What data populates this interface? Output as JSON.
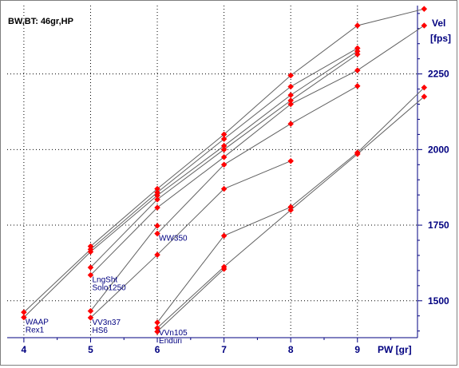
{
  "chart_data": {
    "type": "scatter",
    "title": "BW,BT:  46gr,HP",
    "xlabel": "PW [gr]",
    "ylabel_line1": "Vel",
    "ylabel_line2": "[fps]",
    "xlim": [
      3.75,
      9.9
    ],
    "ylim": [
      1378,
      2476
    ],
    "x_ticks": [
      4,
      5,
      6,
      7,
      8,
      9
    ],
    "y_ticks": [
      1500,
      1750,
      2000,
      2250
    ],
    "grid": true,
    "marker_color": "#ff0000",
    "line_color": "#606060",
    "axis_color": "#000080",
    "series": [
      {
        "values": [
          [
            5,
            1680
          ],
          [
            6,
            1870
          ],
          [
            7,
            2050
          ],
          [
            8,
            2245
          ],
          [
            9,
            2410
          ],
          [
            10,
            2465
          ]
        ]
      },
      {
        "values": [
          [
            4,
            1462
          ],
          [
            5,
            1670
          ],
          [
            6,
            1858
          ],
          [
            7,
            2035
          ],
          [
            8,
            2208
          ],
          [
            9,
            2335
          ]
        ]
      },
      {
        "values": [
          [
            4,
            1445
          ],
          [
            5,
            1662
          ],
          [
            6,
            1848
          ],
          [
            7,
            2012
          ],
          [
            8,
            2180
          ],
          [
            9,
            2325
          ]
        ]
      },
      {
        "values": [
          [
            5,
            1610
          ],
          [
            6,
            1835
          ],
          [
            7,
            2000
          ],
          [
            8,
            2162
          ],
          [
            9,
            2315
          ]
        ]
      },
      {
        "label": "LngSht",
        "label_at": [
          5,
          1585
        ],
        "values": [
          [
            5,
            1585
          ],
          [
            6,
            1808
          ],
          [
            7,
            1975
          ],
          [
            8,
            2150
          ],
          [
            9,
            2262
          ],
          [
            10,
            2410
          ]
        ]
      },
      {
        "label": "WW350",
        "label_at": [
          6,
          1722
        ],
        "values": [
          [
            6,
            1722
          ],
          [
            7,
            1950
          ],
          [
            8,
            2085
          ],
          [
            9,
            2210
          ]
        ]
      },
      {
        "label": "Solo1250",
        "values": [
          [
            5,
            1466
          ],
          [
            6,
            1748
          ]
        ]
      },
      {
        "label": "VV3n37",
        "label_at": [
          5,
          1444
        ],
        "values": [
          [
            5,
            1444
          ],
          [
            6,
            1652
          ],
          [
            7,
            1870
          ],
          [
            8,
            1962
          ]
        ]
      },
      {
        "values": [
          [
            6,
            1428
          ],
          [
            7,
            1715
          ],
          [
            8,
            1810
          ],
          [
            9,
            1990
          ],
          [
            10,
            2205
          ]
        ]
      },
      {
        "label": "VVn105",
        "label_at": [
          6,
          1410
        ],
        "values": [
          [
            6,
            1410
          ],
          [
            7,
            1612
          ],
          [
            8,
            1800
          ],
          [
            9,
            1985
          ],
          [
            10,
            2175
          ]
        ]
      },
      {
        "values": [
          [
            6,
            1398
          ],
          [
            7,
            1605
          ]
        ]
      }
    ],
    "annotations": [
      {
        "text": "WAAP",
        "at": [
          4,
          1445
        ]
      },
      {
        "text": "Rex1",
        "at": [
          4,
          1445
        ]
      },
      {
        "text": "LngSht",
        "at": [
          5,
          1585
        ]
      },
      {
        "text": "Solo1250",
        "at": [
          5,
          1585
        ]
      },
      {
        "text": "WW350",
        "at": [
          6,
          1722
        ]
      },
      {
        "text": "VV3n37",
        "at": [
          5,
          1444
        ]
      },
      {
        "text": "HS6",
        "at": [
          5,
          1444
        ]
      },
      {
        "text": "VVn105",
        "at": [
          6,
          1410
        ]
      },
      {
        "text": "Enduri",
        "at": [
          6,
          1410
        ]
      }
    ]
  }
}
